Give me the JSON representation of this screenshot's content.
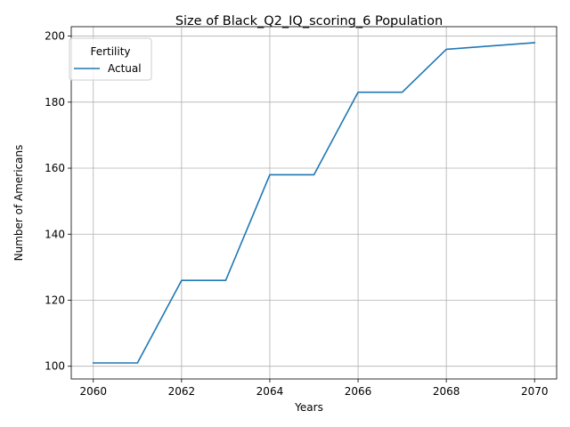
{
  "chart_data": {
    "type": "line",
    "title": "Size of Black_Q2_IQ_scoring_6 Population",
    "xlabel": "Years",
    "ylabel": "Number of Americans",
    "x": [
      2060,
      2061,
      2062,
      2063,
      2064,
      2065,
      2066,
      2067,
      2068,
      2069,
      2070
    ],
    "series": [
      {
        "name": "Actual",
        "color": "#1f77b4",
        "values": [
          101,
          101,
          126,
          126,
          158,
          158,
          183,
          183,
          196,
          197,
          198
        ]
      }
    ],
    "xlim": [
      2059.5,
      2070.5
    ],
    "ylim": [
      96.15,
      202.85
    ],
    "xticks": [
      2060,
      2062,
      2064,
      2066,
      2068,
      2070
    ],
    "yticks": [
      100,
      120,
      140,
      160,
      180,
      200
    ],
    "grid": true,
    "legend": {
      "title": "Fertility",
      "placement": "top-left"
    }
  }
}
